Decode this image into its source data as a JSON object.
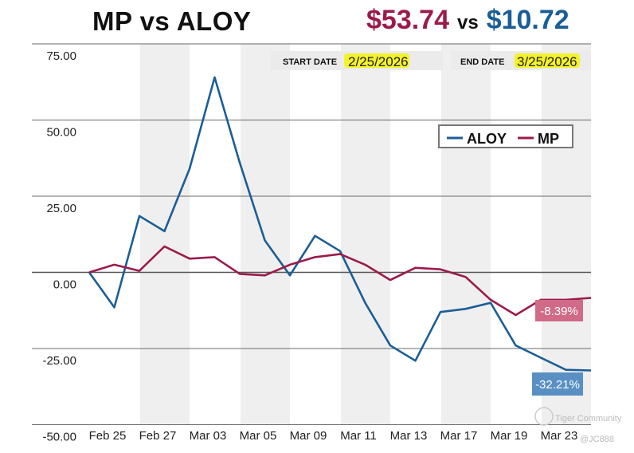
{
  "header": {
    "title": "MP vs ALOY",
    "price_a": "$53.74",
    "vs": "vs",
    "price_b": "$10.72"
  },
  "dates": {
    "start_label": "START DATE",
    "start_value": "2/25/2026",
    "end_label": "END DATE",
    "end_value": "3/25/2026"
  },
  "watermark": {
    "brand": "Tiger Community",
    "user": "@JC888"
  },
  "colors": {
    "aloy": "#1b5e96",
    "mp": "#9b1b4b",
    "aloy_callout": "#5a8fc4",
    "mp_callout": "#d06a86",
    "band": "#efefef",
    "highlight": "#f4f22a"
  },
  "chart_data": {
    "type": "line",
    "ylim": [
      -50,
      75
    ],
    "yticks": [
      75,
      50,
      25,
      0,
      -25,
      -50
    ],
    "ytick_labels": [
      "75.00",
      "50.00",
      "25.00",
      "0.00",
      "-25.00",
      "-50.00"
    ],
    "xtick_labels": [
      "Feb 25",
      "Feb 27",
      "Mar 03",
      "Mar 05",
      "Mar 09",
      "Mar 11",
      "Mar 13",
      "Mar 17",
      "Mar 19",
      "Mar 23"
    ],
    "x": [
      0,
      1,
      2,
      3,
      4,
      5,
      6,
      7,
      8,
      9,
      10,
      11,
      12,
      13,
      14,
      15,
      16,
      17,
      18,
      19,
      20
    ],
    "series": [
      {
        "name": "ALOY",
        "color": "#1b5e96",
        "values": [
          0,
          -11.5,
          18.5,
          13.5,
          34,
          64,
          36,
          10.5,
          -1,
          12,
          7,
          -10,
          -24,
          -29,
          -13,
          -12,
          -10,
          -24,
          -28,
          -32,
          -32.21
        ],
        "end_label": "-32.21%"
      },
      {
        "name": "MP",
        "color": "#9b1b4b",
        "values": [
          0,
          2.5,
          0.5,
          8.5,
          4.5,
          5,
          -0.5,
          -1,
          2.5,
          5,
          6,
          2.5,
          -2.5,
          1.5,
          1,
          -1.5,
          -9,
          -14,
          -9,
          -9,
          -8.39
        ],
        "end_label": "-8.39%"
      }
    ]
  }
}
